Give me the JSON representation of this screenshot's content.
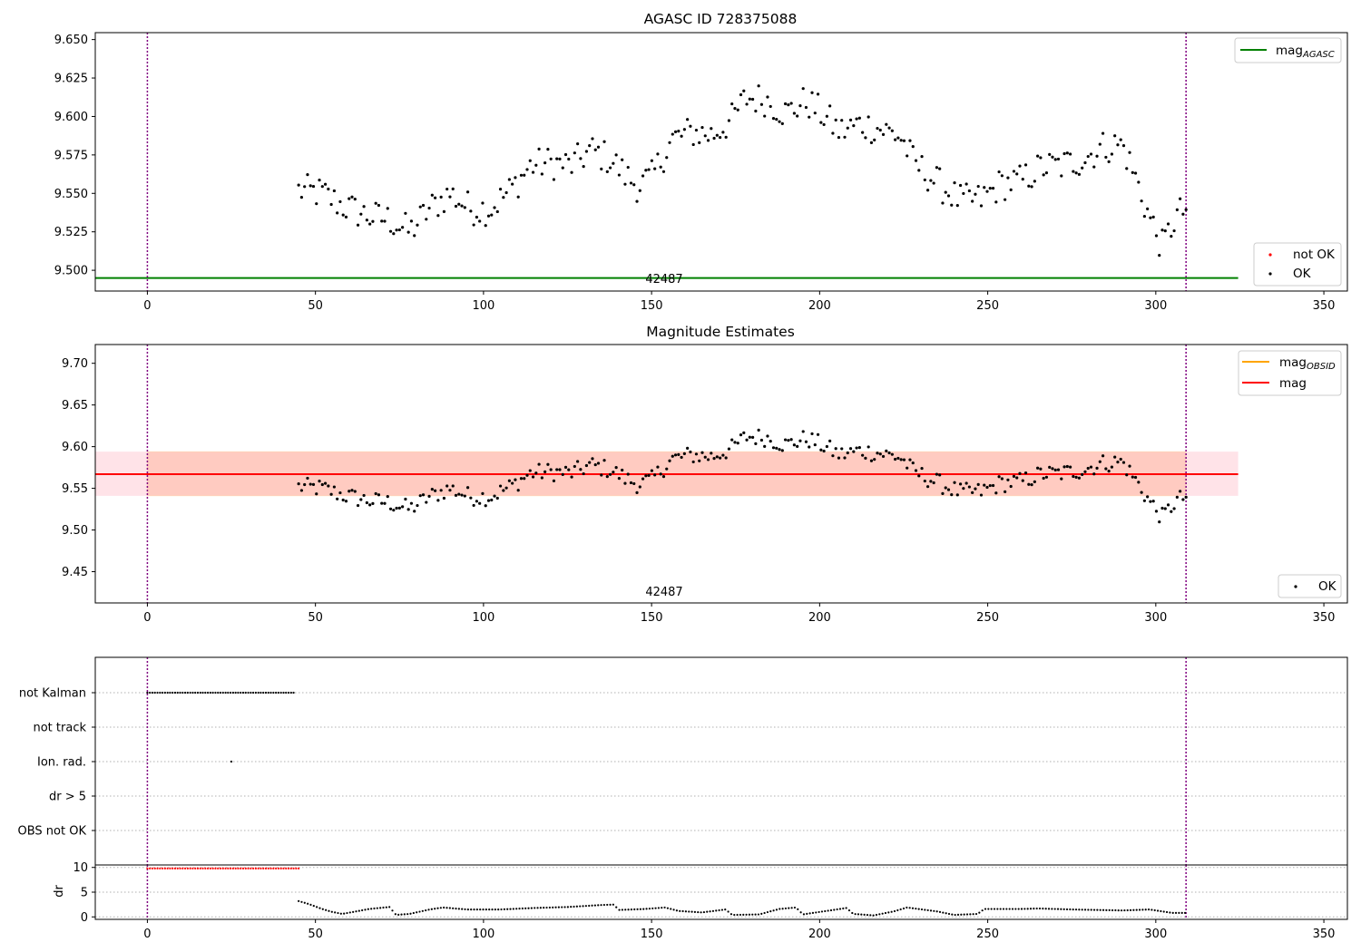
{
  "colors": {
    "ok": "#000000",
    "not_ok": "#ff0000",
    "mag_agasc": "#008000",
    "mag_obsid": "#ffa500",
    "mag": "#ff0000",
    "band_outer": "#ffc0cb",
    "band_inner": "#ffa07a",
    "vline": "#800080",
    "grid": "#b0b0b0"
  },
  "chart_data": [
    {
      "type": "scatter",
      "title": "AGASC ID 728375088",
      "xlim": [
        -15.5,
        357
      ],
      "ylim": [
        9.4865,
        9.6545
      ],
      "xticks": [
        0,
        50,
        100,
        150,
        200,
        250,
        300,
        350
      ],
      "yticks": [
        9.5,
        9.525,
        9.55,
        9.575,
        9.6,
        9.625,
        9.65
      ],
      "ytick_labels": [
        "9.500",
        "9.525",
        "9.550",
        "9.575",
        "9.600",
        "9.625",
        "9.650"
      ],
      "obsid_vlines": [
        0,
        309
      ],
      "obsid_label": {
        "text": "42487",
        "x": 154.5
      },
      "mag_agasc": {
        "value": 9.495,
        "x": [
          -15.5,
          324.5
        ]
      },
      "legend_lines": [
        {
          "label": "mag",
          "sub": "AGASC",
          "color": "#008000"
        }
      ],
      "legend_points": [
        {
          "label": "not OK",
          "color": "#ff0000"
        },
        {
          "label": "OK",
          "color": "#000000"
        }
      ],
      "series": [
        {
          "name": "OK",
          "color": "#000000",
          "start": 45,
          "end": 309,
          "points": 300,
          "data": "x_to_y_from_anchors"
        }
      ]
    },
    {
      "type": "scatter",
      "title": "Magnitude Estimates",
      "xlim": [
        -15.5,
        357
      ],
      "ylim": [
        9.4125,
        9.7225
      ],
      "xticks": [
        0,
        50,
        100,
        150,
        200,
        250,
        300,
        350
      ],
      "yticks": [
        9.45,
        9.5,
        9.55,
        9.6,
        9.65,
        9.7
      ],
      "ytick_labels": [
        "9.45",
        "9.50",
        "9.55",
        "9.60",
        "9.65",
        "9.70"
      ],
      "obsid_vlines": [
        0,
        309
      ],
      "obsid_label": {
        "text": "42487",
        "x": 154.5
      },
      "mag": {
        "value": 9.567,
        "lo": 9.541,
        "hi": 9.594,
        "x": [
          -15.5,
          324.5
        ]
      },
      "mag_obsid": {
        "value": 9.567,
        "lo": 9.541,
        "hi": 9.594,
        "x": [
          0,
          309
        ]
      },
      "legend_lines": [
        {
          "label": "mag",
          "sub": "OBSID",
          "color": "#ffa500"
        },
        {
          "label": "mag",
          "sub": "",
          "color": "#ff0000"
        }
      ],
      "legend_points": [
        {
          "label": "OK",
          "color": "#000000"
        }
      ],
      "series": [
        {
          "name": "OK",
          "color": "#000000",
          "start": 45,
          "end": 309,
          "points": 300
        }
      ]
    },
    {
      "type": "scatter",
      "xlim": [
        -15.5,
        357
      ],
      "categories": [
        "not Kalman",
        "not track",
        "Ion. rad.",
        "dr > 5",
        "OBS not OK"
      ],
      "xticks": [
        0,
        50,
        100,
        150,
        200,
        250,
        300,
        350
      ],
      "obsid_vlines": [
        0,
        309
      ],
      "flags": {
        "not Kalman": {
          "ranges": [
            [
              0,
              44
            ]
          ]
        },
        "not track": {
          "ranges": []
        },
        "Ion. rad.": {
          "points": [
            25
          ]
        },
        "dr > 5": {
          "ranges": []
        },
        "OBS not OK": {
          "ranges": []
        }
      }
    },
    {
      "type": "scatter",
      "ylabel": "dr",
      "xlim": [
        -15.5,
        357
      ],
      "ylim": [
        -0.5,
        10.5
      ],
      "yticks": [
        0,
        5,
        10
      ],
      "xticks": [
        0,
        50,
        100,
        150,
        200,
        250,
        300,
        350
      ],
      "obsid_vlines": [
        0,
        309
      ],
      "series": [
        {
          "name": "not OK",
          "color": "#ff0000",
          "x_range": [
            0,
            45
          ],
          "y": 9.8
        },
        {
          "name": "OK",
          "color": "#000000",
          "x_range": [
            45,
            309
          ],
          "y_profile": [
            [
              45,
              3.2
            ],
            [
              48,
              2.6
            ],
            [
              52,
              1.6
            ],
            [
              55,
              1.0
            ],
            [
              58,
              0.6
            ],
            [
              62,
              1.1
            ],
            [
              66,
              1.6
            ],
            [
              72,
              2.0
            ],
            [
              74,
              0.4
            ],
            [
              78,
              0.6
            ],
            [
              84,
              1.5
            ],
            [
              88,
              1.9
            ],
            [
              95,
              1.5
            ],
            [
              105,
              1.5
            ],
            [
              115,
              1.8
            ],
            [
              125,
              2.0
            ],
            [
              135,
              2.4
            ],
            [
              139,
              2.5
            ],
            [
              140,
              1.4
            ],
            [
              148,
              1.6
            ],
            [
              154,
              1.9
            ],
            [
              158,
              1.2
            ],
            [
              165,
              0.9
            ],
            [
              172,
              1.5
            ],
            [
              174,
              0.4
            ],
            [
              182,
              0.5
            ],
            [
              188,
              1.6
            ],
            [
              193,
              1.9
            ],
            [
              195,
              0.5
            ],
            [
              205,
              1.5
            ],
            [
              208,
              1.8
            ],
            [
              210,
              0.6
            ],
            [
              216,
              0.3
            ],
            [
              222,
              1.1
            ],
            [
              226,
              1.9
            ],
            [
              235,
              1.1
            ],
            [
              240,
              0.4
            ],
            [
              247,
              0.6
            ],
            [
              249,
              1.6
            ],
            [
              260,
              1.6
            ],
            [
              265,
              1.7
            ],
            [
              275,
              1.5
            ],
            [
              290,
              1.3
            ],
            [
              298,
              1.5
            ],
            [
              305,
              0.8
            ],
            [
              309,
              0.8
            ]
          ]
        }
      ]
    }
  ]
}
